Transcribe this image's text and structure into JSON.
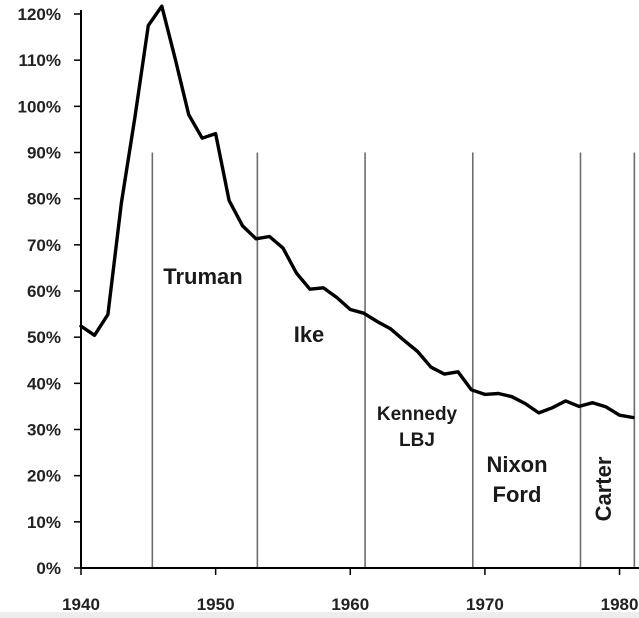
{
  "chart_data": {
    "type": "line",
    "title": "",
    "xlabel": "",
    "ylabel": "",
    "xlim": [
      1940,
      1981
    ],
    "ylim": [
      0,
      120
    ],
    "x_ticks": [
      1940,
      1950,
      1960,
      1970,
      1980
    ],
    "x_tick_labels": [
      "1940",
      "1950",
      "1960",
      "1970",
      "1980"
    ],
    "y_ticks": [
      0,
      10,
      20,
      30,
      40,
      50,
      60,
      70,
      80,
      90,
      100,
      110,
      120
    ],
    "y_tick_labels": [
      "0%",
      "10%",
      "20%",
      "30%",
      "40%",
      "50%",
      "60%",
      "70%",
      "80%",
      "90%",
      "100%",
      "110%",
      "120%"
    ],
    "grid": false,
    "legend": "none",
    "line_color": "#000000",
    "series": [
      {
        "x": [
          1940,
          1941,
          1942,
          1943,
          1944,
          1945,
          1946,
          1947,
          1948,
          1949,
          1950,
          1951,
          1952,
          1953,
          1954,
          1955,
          1956,
          1957,
          1958,
          1959,
          1960,
          1961,
          1962,
          1963,
          1964,
          1965,
          1966,
          1967,
          1968,
          1969,
          1970,
          1971,
          1972,
          1973,
          1974,
          1975,
          1976,
          1977,
          1978,
          1979,
          1980,
          1981
        ],
        "values": [
          52.4,
          50.4,
          54.9,
          79.1,
          97.6,
          117.5,
          121.7,
          110.3,
          98.2,
          93.1,
          94.1,
          79.6,
          74.1,
          71.3,
          71.8,
          69.3,
          63.9,
          60.4,
          60.7,
          58.6,
          56.0,
          55.2,
          53.4,
          51.8,
          49.3,
          46.9,
          43.5,
          42.0,
          42.5,
          38.6,
          37.6,
          37.8,
          37.1,
          35.6,
          33.6,
          34.7,
          36.2,
          35.0,
          35.8,
          34.9,
          33.1,
          32.6
        ]
      }
    ],
    "eras": [
      {
        "label_lines": [
          "Truman"
        ],
        "start": 1945.3
      },
      {
        "label_lines": [
          "Ike"
        ],
        "start": 1953.1
      },
      {
        "label_lines": [
          "Kennedy",
          "LBJ"
        ],
        "start": 1961.1
      },
      {
        "label_lines": [
          "Nixon",
          "Ford"
        ],
        "start": 1969.1
      },
      {
        "label_lines": [
          "Carter"
        ],
        "start": 1977.1
      },
      {
        "label_lines": [],
        "start": 1981.1
      }
    ]
  }
}
